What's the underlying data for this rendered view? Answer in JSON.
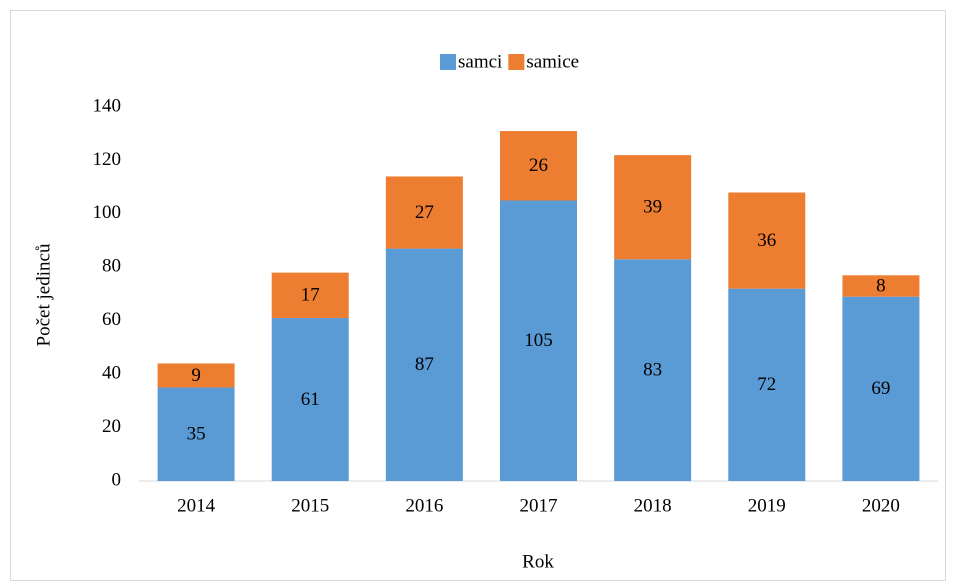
{
  "chart_data": {
    "type": "stacked_bar",
    "x_label": "Rok",
    "y_label": "Počet jedinců",
    "categories": [
      "2014",
      "2015",
      "2016",
      "2017",
      "2018",
      "2019",
      "2020"
    ],
    "series": [
      {
        "name": "samci",
        "color": "#5b9bd5",
        "values": [
          35,
          61,
          87,
          105,
          83,
          72,
          69
        ]
      },
      {
        "name": "samice",
        "color": "#ed7d31",
        "values": [
          9,
          17,
          27,
          26,
          39,
          36,
          8
        ]
      }
    ],
    "ylim": [
      0,
      140
    ],
    "yticks": [
      0,
      20,
      40,
      60,
      80,
      100,
      120,
      140
    ],
    "grid": false,
    "legend": "top"
  }
}
